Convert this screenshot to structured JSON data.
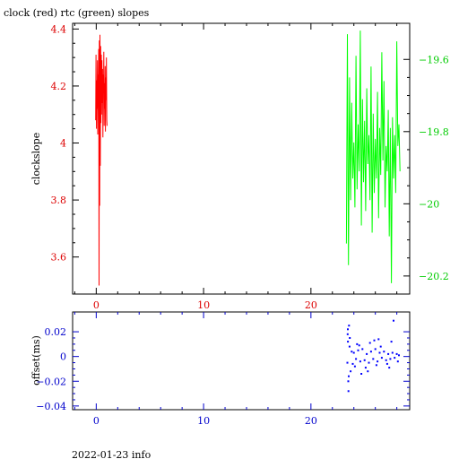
{
  "chart_data": [
    {
      "type": "line",
      "title": "clock (red) rtc (green) slopes",
      "ylabel": "clockslope",
      "xlim": [
        -2.2,
        29.2
      ],
      "x_ticks": [
        0,
        10,
        20
      ],
      "ylim_left": [
        3.47,
        4.42
      ],
      "y_ticks_left": [
        3.6,
        3.8,
        4,
        4.2,
        4.4
      ],
      "ylim_right": [
        -20.25,
        -19.5
      ],
      "y_ticks_right": [
        -20.2,
        -20,
        -19.8,
        -19.6
      ],
      "colors": {
        "left_axis": "#dd0000",
        "right_axis": "#00cc00",
        "frame": "#000000"
      },
      "series": [
        {
          "name": "clock",
          "color": "#ff0000",
          "axis": "left",
          "x": [
            -0.05,
            -0.02,
            0.02,
            0.05,
            0.08,
            0.11,
            0.14,
            0.17,
            0.2,
            0.23,
            0.26,
            0.29,
            0.32,
            0.35,
            0.38,
            0.41,
            0.44,
            0.47,
            0.5,
            0.53,
            0.56,
            0.59,
            0.62,
            0.65,
            0.68,
            0.71,
            0.74,
            0.77,
            0.8,
            0.83,
            0.86,
            0.89,
            0.92,
            0.95,
            0.98,
            1.01
          ],
          "y": [
            4.08,
            4.31,
            4.05,
            4.22,
            4.12,
            4.29,
            4.03,
            4.24,
            4.16,
            4.33,
            3.5,
            4.36,
            3.78,
            4.38,
            3.92,
            4.34,
            4.07,
            4.31,
            4.1,
            4.29,
            4.14,
            4.26,
            4.02,
            4.24,
            4.18,
            4.32,
            4.06,
            4.21,
            4.12,
            4.27,
            4.04,
            4.23,
            4.15,
            4.3,
            4.08,
            4.06
          ]
        },
        {
          "name": "rtc",
          "color": "#00ff00",
          "axis": "right",
          "x": [
            23.3,
            23.4,
            23.5,
            23.6,
            23.7,
            23.8,
            23.9,
            24.0,
            24.1,
            24.2,
            24.3,
            24.4,
            24.5,
            24.6,
            24.7,
            24.8,
            24.9,
            25.0,
            25.1,
            25.2,
            25.3,
            25.4,
            25.5,
            25.6,
            25.7,
            25.8,
            25.9,
            26.0,
            26.1,
            26.2,
            26.3,
            26.4,
            26.5,
            26.6,
            26.7,
            26.8,
            26.9,
            27.0,
            27.1,
            27.2,
            27.3,
            27.4,
            27.5,
            27.6,
            27.7,
            27.8,
            27.9,
            28.0,
            28.1,
            28.2,
            28.3
          ],
          "y": [
            -20.11,
            -19.53,
            -20.17,
            -19.65,
            -19.99,
            -19.72,
            -19.93,
            -19.83,
            -20.01,
            -19.59,
            -19.96,
            -19.78,
            -19.91,
            -19.52,
            -20.06,
            -19.71,
            -19.94,
            -19.77,
            -20.02,
            -19.68,
            -19.89,
            -19.81,
            -19.99,
            -19.62,
            -20.08,
            -19.75,
            -19.97,
            -19.82,
            -19.93,
            -19.69,
            -20.04,
            -19.79,
            -19.92,
            -19.58,
            -19.88,
            -19.66,
            -20.01,
            -19.84,
            -19.91,
            -19.74,
            -20.09,
            -19.79,
            -20.22,
            -19.76,
            -19.93,
            -19.81,
            -19.97,
            -19.55,
            -19.84,
            -19.78,
            -19.91
          ]
        }
      ]
    },
    {
      "type": "scatter",
      "title": "",
      "ylabel": "offset(ms)",
      "xlim": [
        -2.2,
        29.2
      ],
      "x_ticks": [
        0,
        10,
        20
      ],
      "ylim": [
        -0.043,
        0.036
      ],
      "y_ticks": [
        0.02,
        0,
        -0.02,
        -0.04
      ],
      "y_tick_labels": [
        "0.02",
        "0",
        "−0.02",
        "−0.04"
      ],
      "colors": {
        "axis": "#0000cc",
        "points": "#0000ff"
      },
      "series": [
        {
          "name": "offset",
          "color": "#0000ff",
          "x": [
            23.4,
            23.45,
            23.5,
            23.55,
            23.6,
            23.7,
            23.8,
            23.9,
            24.0,
            24.2,
            24.4,
            24.6,
            24.8,
            25.0,
            25.2,
            25.4,
            25.6,
            25.8,
            26.0,
            26.2,
            26.4,
            26.6,
            26.8,
            27.0,
            27.2,
            27.4,
            27.6,
            27.8,
            28.0,
            28.2,
            23.42,
            23.52,
            23.62,
            24.1,
            24.5,
            25.1,
            25.5,
            26.1,
            26.5,
            27.1,
            27.5,
            28.1,
            23.48,
            24.3,
            25.3,
            26.3,
            27.3,
            23.44,
            24.7,
            25.9,
            27.7
          ],
          "y": [
            -0.005,
            0.012,
            -0.028,
            0.025,
            0.008,
            -0.012,
            0.004,
            -0.006,
            0.003,
            -0.002,
            0.005,
            -0.004,
            0.006,
            -0.003,
            0.002,
            -0.005,
            0.004,
            -0.002,
            0.006,
            -0.004,
            0.003,
            -0.001,
            0.004,
            -0.003,
            0.002,
            -0.002,
            0.003,
            -0.001,
            0.002,
            0.001,
            0.018,
            -0.016,
            0.015,
            -0.008,
            0.009,
            -0.009,
            0.011,
            -0.007,
            0.008,
            -0.006,
            0.012,
            -0.004,
            -0.02,
            0.01,
            -0.012,
            0.014,
            -0.009,
            0.022,
            -0.014,
            0.013,
            0.029
          ]
        }
      ]
    }
  ],
  "footer": {
    "date_text": "2022-01-23 info"
  }
}
